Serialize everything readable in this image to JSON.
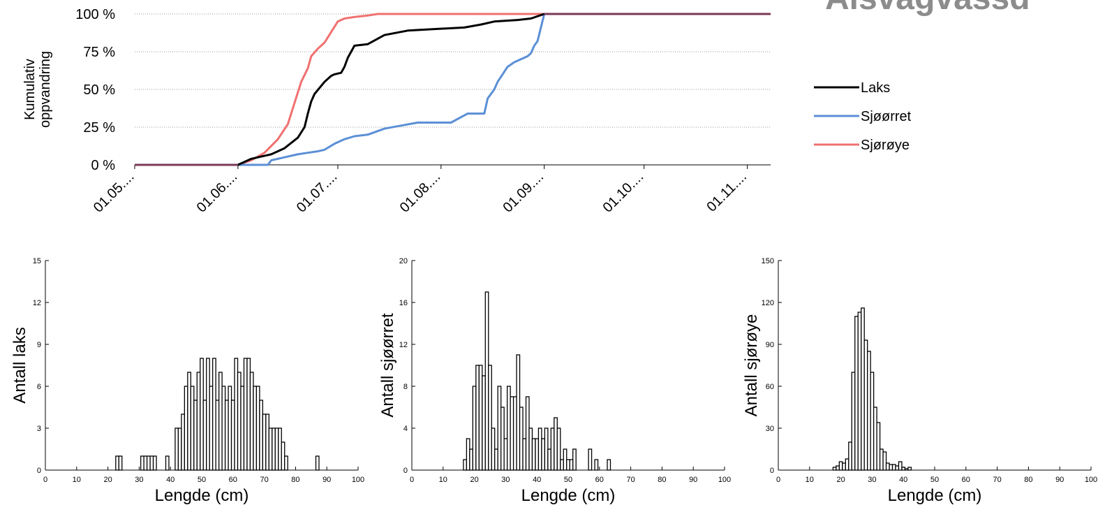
{
  "page": {
    "title": "Alsvågvassd"
  },
  "chart_data": [
    {
      "type": "line",
      "ylabel": "Kumulativ oppvandring",
      "y_ticks": [
        "0 %",
        "25 %",
        "50 %",
        "75 %",
        "100 %"
      ],
      "ylim": [
        0,
        100
      ],
      "x_ticks": [
        "01.05....",
        "01.06....",
        "01.07....",
        "01.08....",
        "01.09....",
        "01.10....",
        "01.11...."
      ],
      "xlim_day": [
        0,
        191
      ],
      "grid": "horizontal dotted",
      "legend_position": "right",
      "series": [
        {
          "name": "Laks",
          "color": "#000000",
          "x": [
            0,
            31,
            35,
            37,
            41,
            45,
            49,
            51,
            52,
            53,
            54,
            57,
            59,
            60,
            62,
            63,
            64,
            66,
            70,
            75,
            82,
            90,
            99,
            104,
            108,
            115,
            119,
            123
          ],
          "y": [
            0,
            0,
            4,
            5,
            7,
            11,
            18,
            25,
            34,
            42,
            47,
            55,
            59,
            60,
            61,
            65,
            71,
            79,
            80,
            86,
            89,
            90,
            91,
            93,
            95,
            96,
            97,
            100
          ]
        },
        {
          "name": "Sjøørret",
          "color": "#5b8fd6",
          "x": [
            0,
            40,
            41,
            45,
            49,
            52,
            55,
            57,
            60,
            63,
            66,
            70,
            75,
            80,
            85,
            90,
            95,
            100,
            105,
            106,
            108,
            109,
            112,
            114,
            116,
            118,
            119,
            120,
            121,
            123,
            191
          ],
          "y": [
            0,
            0,
            3,
            5,
            7,
            8,
            9,
            10,
            14,
            17,
            19,
            20,
            24,
            26,
            28,
            28,
            28,
            34,
            34,
            44,
            50,
            55,
            65,
            68,
            70,
            72,
            74,
            79,
            82,
            100,
            100
          ]
        },
        {
          "name": "Sjørøye",
          "color": "#f07070",
          "x": [
            0,
            31,
            35,
            39,
            43,
            46,
            48,
            50,
            52,
            53,
            55,
            57,
            59,
            61,
            63,
            66,
            70,
            73,
            191
          ],
          "y": [
            0,
            0,
            3,
            8,
            17,
            27,
            41,
            55,
            64,
            72,
            77,
            81,
            88,
            95,
            97,
            98,
            99,
            100,
            100
          ]
        }
      ]
    },
    {
      "type": "bar",
      "xlabel": "Lengde (cm)",
      "ylabel": "Antall laks",
      "ylim": [
        0,
        15
      ],
      "xlim": [
        0,
        100
      ],
      "y_ticks": [
        "0",
        "3",
        "6",
        "9",
        "12",
        "15"
      ],
      "x_ticks": [
        "0",
        "10",
        "20",
        "30",
        "40",
        "50",
        "60",
        "70",
        "80",
        "90",
        "100"
      ],
      "x": [
        23,
        24,
        31,
        32,
        33,
        34,
        35,
        39,
        42,
        43,
        44,
        45,
        46,
        47,
        48,
        49,
        50,
        51,
        52,
        53,
        54,
        55,
        56,
        57,
        58,
        59,
        60,
        61,
        62,
        63,
        64,
        65,
        66,
        67,
        68,
        69,
        70,
        71,
        72,
        73,
        74,
        75,
        76,
        77,
        87
      ],
      "values": [
        1,
        1,
        1,
        1,
        1,
        1,
        1,
        1,
        3,
        3,
        4,
        6,
        7,
        6,
        5,
        7,
        8,
        5,
        8,
        6,
        8,
        5,
        7,
        6,
        5,
        6,
        5,
        8,
        7,
        6,
        8,
        8,
        7,
        6,
        6,
        5,
        4,
        4,
        3,
        3,
        3,
        3,
        2,
        1,
        1
      ]
    },
    {
      "type": "bar",
      "xlabel": "Lengde (cm)",
      "ylabel": "Antall sjøørret",
      "ylim": [
        0,
        20
      ],
      "xlim": [
        0,
        100
      ],
      "y_ticks": [
        "0",
        "4",
        "8",
        "12",
        "16",
        "20"
      ],
      "x_ticks": [
        "0",
        "10",
        "20",
        "30",
        "40",
        "50",
        "60",
        "70",
        "80",
        "90",
        "100"
      ],
      "x": [
        17,
        18,
        19,
        20,
        21,
        22,
        23,
        24,
        25,
        26,
        27,
        28,
        29,
        30,
        31,
        32,
        33,
        34,
        35,
        36,
        37,
        38,
        39,
        40,
        41,
        42,
        43,
        44,
        45,
        46,
        47,
        48,
        49,
        50,
        51,
        52,
        57,
        59,
        63
      ],
      "values": [
        1,
        3,
        2,
        8,
        10,
        10,
        9,
        17,
        10,
        4,
        2,
        8,
        6,
        3,
        8,
        7,
        7,
        11,
        6,
        3,
        7,
        4,
        3,
        3,
        4,
        3,
        4,
        2,
        4,
        5,
        4,
        1,
        2,
        1,
        1,
        2,
        2,
        1,
        1
      ]
    },
    {
      "type": "bar",
      "xlabel": "Lengde (cm)",
      "ylabel": "Antall sjørøye",
      "ylim": [
        0,
        150
      ],
      "xlim": [
        0,
        100
      ],
      "y_ticks": [
        "0",
        "30",
        "60",
        "90",
        "120",
        "150"
      ],
      "x_ticks": [
        "0",
        "10",
        "20",
        "30",
        "40",
        "50",
        "60",
        "70",
        "80",
        "90",
        "100"
      ],
      "x": [
        18,
        19,
        20,
        21,
        22,
        23,
        24,
        25,
        26,
        27,
        28,
        29,
        30,
        31,
        32,
        33,
        34,
        35,
        36,
        37,
        38,
        39,
        40,
        41,
        42
      ],
      "values": [
        2,
        3,
        6,
        5,
        8,
        20,
        70,
        110,
        113,
        116,
        93,
        85,
        70,
        45,
        34,
        15,
        13,
        5,
        4,
        4,
        3,
        6,
        2,
        1,
        2
      ]
    }
  ]
}
